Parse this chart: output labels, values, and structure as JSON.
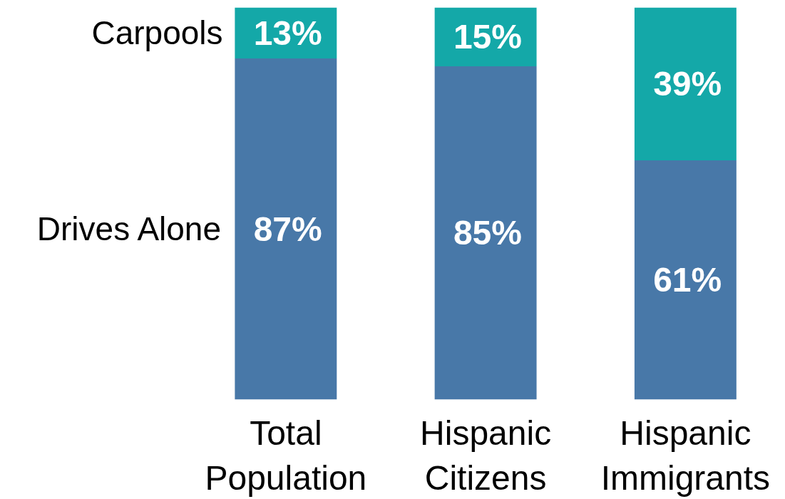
{
  "chart_data": {
    "type": "bar",
    "stacked": true,
    "categories": [
      "Total Population",
      "Hispanic Citizens",
      "Hispanic Immigrants"
    ],
    "series": [
      {
        "name": "Drives Alone",
        "color": "#4878a8",
        "values": [
          87,
          85,
          61
        ],
        "value_labels": [
          "87%",
          "85%",
          "61%"
        ]
      },
      {
        "name": "Carpools",
        "color": "#14a8a8",
        "values": [
          13,
          15,
          39
        ],
        "value_labels": [
          "13%",
          "15%",
          "39%"
        ]
      }
    ],
    "grid": false
  }
}
